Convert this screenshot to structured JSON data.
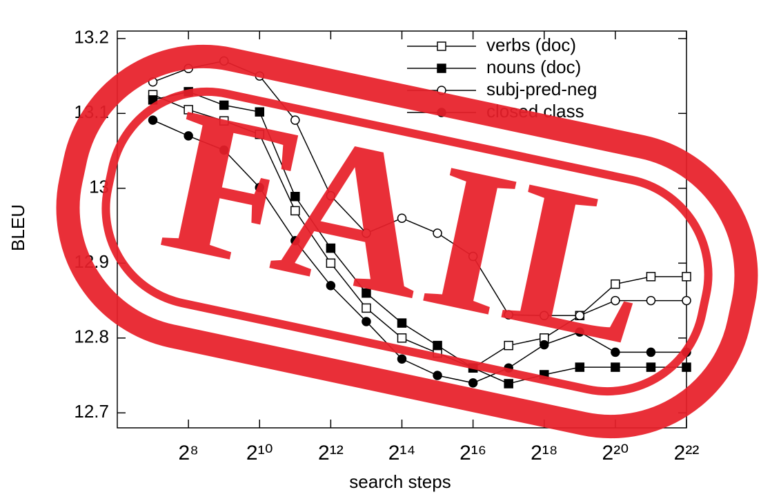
{
  "chart_data": {
    "type": "line",
    "x_label": "search steps",
    "y_label": "BLEU",
    "xscale": "log2",
    "x": [
      128,
      256,
      512,
      1024,
      2048,
      4096,
      8192,
      16384,
      32768,
      65536,
      131072,
      262144,
      524288,
      1048576,
      2097152,
      4194304
    ],
    "xlim": [
      64,
      4194304
    ],
    "xticks": [
      {
        "value": 256,
        "label": "2⁸"
      },
      {
        "value": 1024,
        "label": "2¹⁰"
      },
      {
        "value": 4096,
        "label": "2¹²"
      },
      {
        "value": 16384,
        "label": "2¹⁴"
      },
      {
        "value": 65536,
        "label": "2¹⁶"
      },
      {
        "value": 262144,
        "label": "2¹⁸"
      },
      {
        "value": 1048576,
        "label": "2²⁰"
      },
      {
        "value": 4194304,
        "label": "2²²"
      }
    ],
    "ylim": [
      12.68,
      13.21
    ],
    "yticks": [
      12.7,
      12.8,
      12.9,
      13,
      13.1,
      13.2
    ],
    "legend": "top-right",
    "series": [
      {
        "name": "verbs (doc)",
        "color": "#000000",
        "marker": "square",
        "filled": false,
        "values": [
          13.125,
          13.105,
          13.09,
          13.072,
          12.97,
          12.9,
          12.84,
          12.8,
          12.78,
          12.76,
          12.79,
          12.8,
          12.83,
          12.872,
          12.882,
          12.882
        ]
      },
      {
        "name": "nouns (doc)",
        "color": "#000000",
        "marker": "square",
        "filled": true,
        "values": [
          13.118,
          13.129,
          13.111,
          13.102,
          12.989,
          12.92,
          12.86,
          12.82,
          12.79,
          12.76,
          12.739,
          12.751,
          12.761,
          12.761,
          12.761,
          12.761
        ]
      },
      {
        "name": "subj-pred-neg",
        "color": "#000000",
        "marker": "circle",
        "filled": false,
        "values": [
          13.142,
          13.16,
          13.17,
          13.15,
          13.091,
          12.99,
          12.94,
          12.96,
          12.94,
          12.909,
          12.831,
          12.83,
          12.83,
          12.85,
          12.85,
          12.85
        ]
      },
      {
        "name": "closed class",
        "color": "#000000",
        "marker": "circle",
        "filled": true,
        "values": [
          13.091,
          13.07,
          13.051,
          13.001,
          12.93,
          12.87,
          12.822,
          12.772,
          12.75,
          12.74,
          12.76,
          12.791,
          12.808,
          12.781,
          12.781,
          12.781
        ]
      }
    ]
  },
  "stamp": "FAIL"
}
